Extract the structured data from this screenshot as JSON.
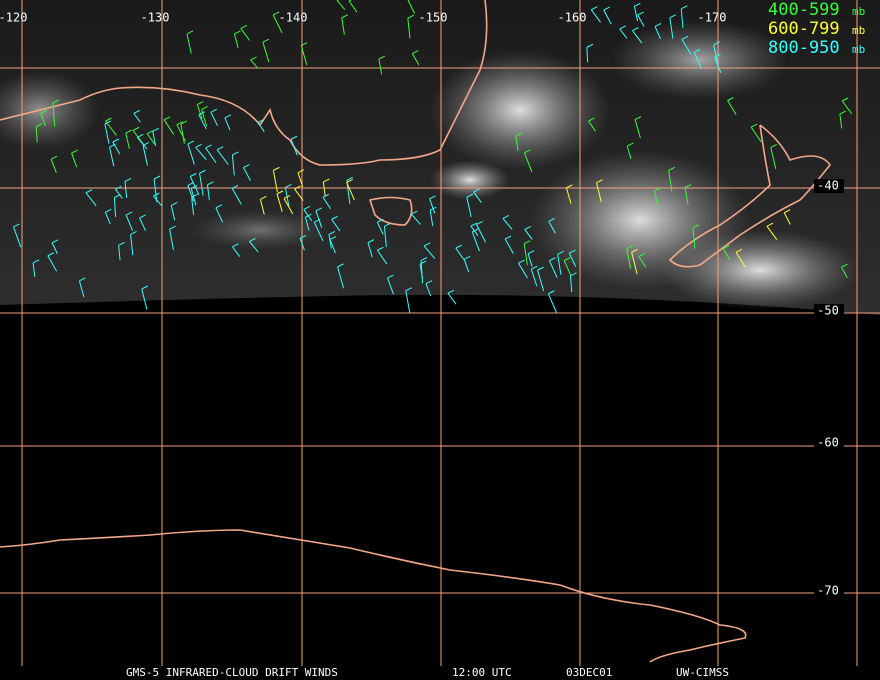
{
  "map": {
    "longitude_labels": [
      "-120",
      "-130",
      "-140",
      "-150",
      "-160",
      "-170"
    ],
    "latitude_labels": [
      "-40",
      "-50",
      "-60",
      "-70"
    ],
    "legend": [
      {
        "range": "400-599",
        "unit": "mb",
        "color": "#33ff33"
      },
      {
        "range": "600-799",
        "unit": "mb",
        "color": "#ffff33"
      },
      {
        "range": "800-950",
        "unit": "mb",
        "color": "#33ffff"
      }
    ],
    "footer": [
      "GMS-5 INFRARED-CLOUD DRIFT WINDS",
      "12:00 UTC",
      "03DEC01",
      "UW-CIMSS"
    ]
  }
}
